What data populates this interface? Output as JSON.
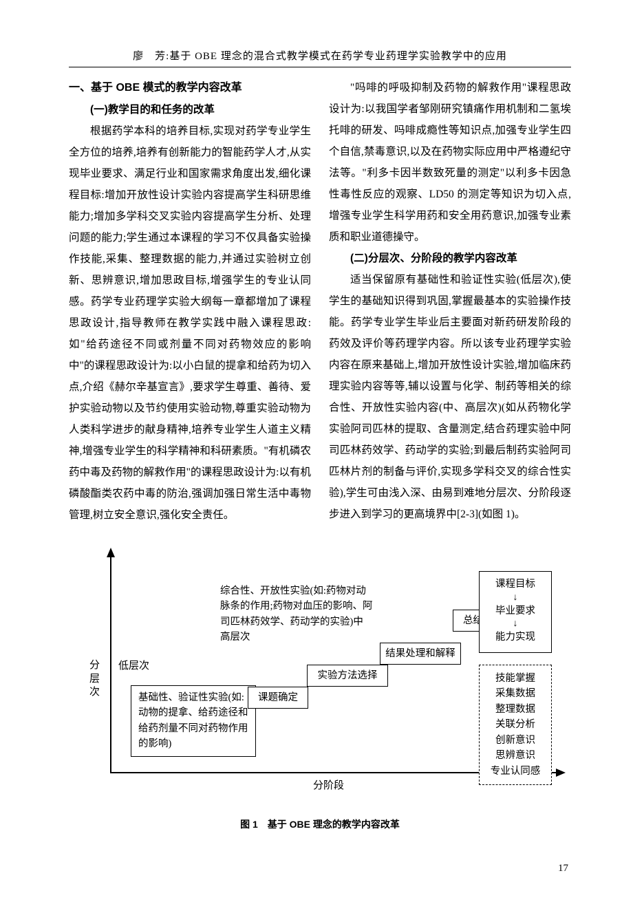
{
  "header": {
    "running_title": "廖　芳:基于 OBE 理念的混合式教学模式在药学专业药理学实验教学中的应用"
  },
  "left": {
    "h1": "一、基于 OBE 模式的教学内容改革",
    "h2": "(一)教学目的和任务的改革",
    "p1": "根据药学本科的培养目标,实现对药学专业学生全方位的培养,培养有创新能力的智能药学人才,从实现毕业要求、满足行业和国家需求角度出发,细化课程目标:增加开放性设计实验内容提高学生科研思维能力;增加多学科交叉实验内容提高学生分析、处理问题的能力;学生通过本课程的学习不仅具备实验操作技能,采集、整理数据的能力,并通过实验树立创新、思辨意识,增加思政目标,增强学生的专业认同感。药学专业药理学实验大纲每一章都增加了课程思政设计,指导教师在教学实践中融入课程思政:如\"给药途径不同或剂量不同对药物效应的影响中\"的课程思政设计为:以小白鼠的提拿和给药为切入点,介绍《赫尔辛基宣言》,要求学生尊重、善待、爱护实验动物以及节约使用实验动物,尊重实验动物为人类科学进步的献身精神,培养专业学生人道主义精神,增强专业学生的科学精神和科研素质。\"有机磷农药中毒及药物的解救作用\"的课程思政设计为:以有机磷酸酯类农药中毒的防治,强调加强日常生活中毒物管理,树立安全意识,强化安全责任。"
  },
  "right": {
    "p1": "\"吗啡的呼吸抑制及药物的解救作用\"课程思政设计为:以我国学者邹刚研究镇痛作用机制和二氢埃托啡的研发、吗啡成瘾性等知识点,加强专业学生四个自信,禁毒意识,以及在药物实际应用中严格遵纪守法等。\"利多卡因半数致死量的测定\"以利多卡因急性毒性反应的观察、LD50 的测定等知识为切入点,增强专业学生科学用药和安全用药意识,加强专业素质和职业道德操守。",
    "h2": "(二)分层次、分阶段的教学内容改革",
    "p2": "适当保留原有基础性和验证性实验(低层次),使学生的基础知识得到巩固,掌握最基本的实验操作技能。药学专业学生毕业后主要面对新药研发阶段的药效及评价等药理学内容。所以该专业药理学实验内容在原来基础上,增加开放性设计实验,增加临床药理实验内容等等,辅以设置与化学、制药等相关的综合性、开放性实验内容(中、高层次)(如从药物化学实验阿司匹林的提取、含量测定,结合药理实验中阿司匹林药效学、药动学的实验;到最后制药实验阿司匹林片剂的制备与评价,实现多学科交叉的综合性实验),学生可由浅入深、由易到难地分层次、分阶段逐步进入到学习的更高境界中[2-3](如图 1)。"
  },
  "figure": {
    "y_label": "分层次",
    "x_label": "分阶段",
    "low_level": "低层次",
    "comp_text": "综合性、开放性实验(如:药物对动脉条的作用;药物对血压的影响、阿司匹林药效学、药动学的实验)中高层次",
    "basic_text": "基础性、验证性实验(如:动物的提拿、给药途径和给药剂量不同对药物作用的影响)",
    "topic": "课题确定",
    "method": "实验方法选择",
    "result": "结果处理和解释",
    "report": "总结报告",
    "goal_1": "课程目标",
    "goal_2": "毕业要求",
    "goal_3": "能力实现",
    "skill_1": "技能掌握",
    "skill_2": "采集数据",
    "skill_3": "整理数据",
    "skill_4": "关联分析",
    "skill_5": "创新意识",
    "skill_6": "思辨意识",
    "skill_7": "专业认同感",
    "caption": "图 1　基于 OBE 理念的教学内容改革"
  },
  "page_number": "17"
}
